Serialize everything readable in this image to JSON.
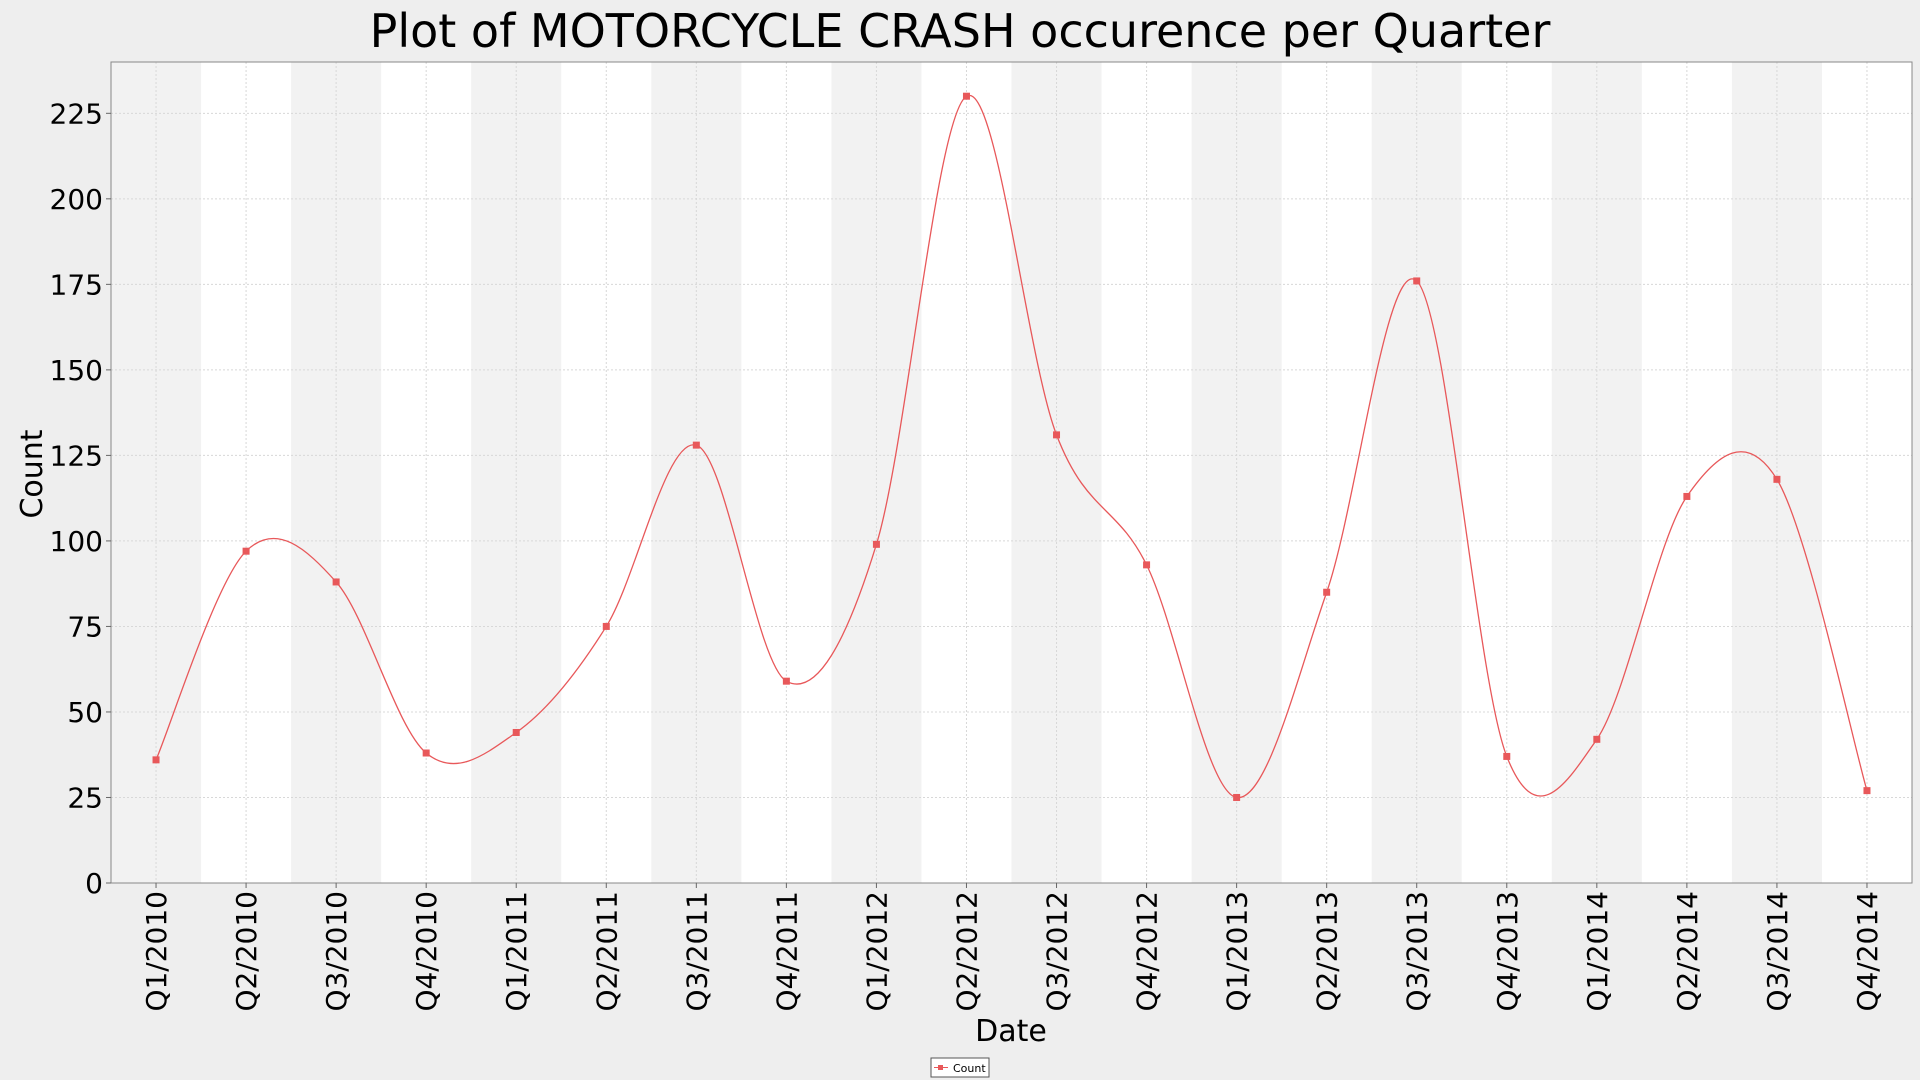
{
  "chart_data": {
    "type": "line",
    "title": "Plot of MOTORCYCLE CRASH occurence per Quarter",
    "xlabel": "Date",
    "ylabel": "Count",
    "categories": [
      "Q1/2010",
      "Q2/2010",
      "Q3/2010",
      "Q4/2010",
      "Q1/2011",
      "Q2/2011",
      "Q3/2011",
      "Q4/2011",
      "Q1/2012",
      "Q2/2012",
      "Q3/2012",
      "Q4/2012",
      "Q1/2013",
      "Q2/2013",
      "Q3/2013",
      "Q4/2013",
      "Q1/2014",
      "Q2/2014",
      "Q3/2014",
      "Q4/2014"
    ],
    "series": [
      {
        "name": "Count",
        "color": "#e8585a",
        "values": [
          36,
          97,
          88,
          38,
          44,
          75,
          128,
          59,
          99,
          230,
          131,
          93,
          25,
          85,
          176,
          37,
          42,
          113,
          118,
          27
        ]
      }
    ],
    "ylim": [
      0,
      240
    ],
    "yticks": [
      0,
      25,
      50,
      75,
      100,
      125,
      150,
      175,
      200,
      225
    ],
    "grid": true,
    "smoothed": true,
    "legend": "bottom-center",
    "colors": {
      "band_dark": "#f2f2f2",
      "band_light": "#ffffff",
      "grid": "#d8d8d8",
      "page_background": "#eeeeee"
    }
  }
}
